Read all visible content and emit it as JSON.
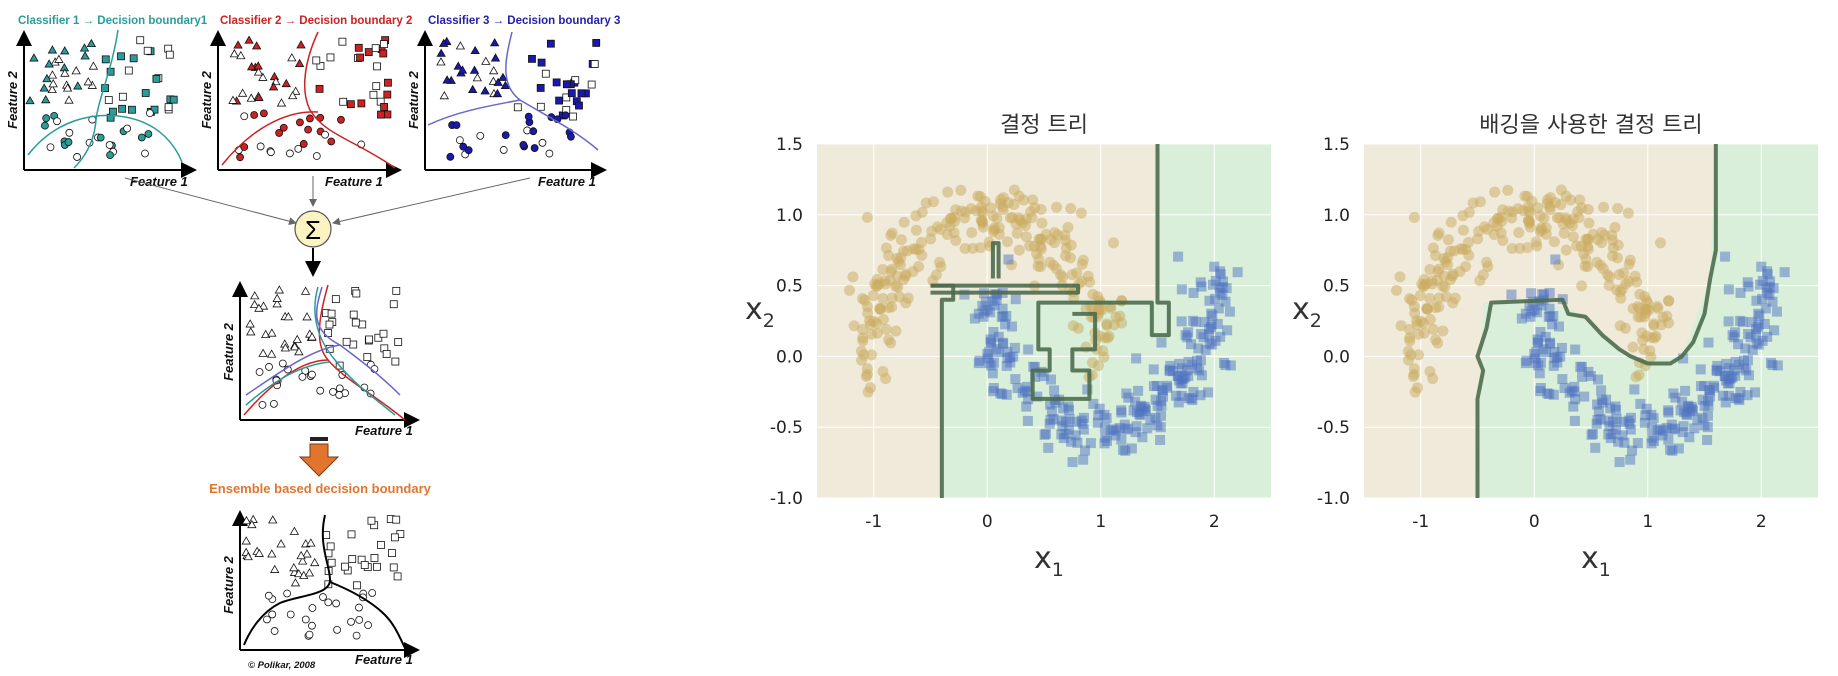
{
  "diagram": {
    "classifier_titles": [
      "Classifier 1 → Decision boundary1",
      "Classifier 2 → Decision boundary 2",
      "Classifier 3 → Decision boundary 3"
    ],
    "classifier_colors": [
      "#2a9d9a",
      "#cc2222",
      "#2222aa"
    ],
    "feature_x": "Feature 1",
    "feature_y": "Feature 2",
    "sum_symbol": "Σ",
    "ensemble_label": "Ensemble based decision boundary",
    "ensemble_color": "#e2752d",
    "credit": "© Polikar, 2008"
  },
  "chart_data": [
    {
      "type": "scatter",
      "title": "결정 트리",
      "xlabel": "x1",
      "ylabel": "x2",
      "xlim": [
        -1.5,
        2.5
      ],
      "ylim": [
        -1.0,
        1.5
      ],
      "xticks": [
        "-1",
        "0",
        "1",
        "2"
      ],
      "yticks": [
        "-1.0",
        "-0.5",
        "0.0",
        "0.5",
        "1.0",
        "1.5"
      ],
      "grid": true,
      "series": [
        {
          "marker": "circle",
          "color": "#c9a95e"
        },
        {
          "marker": "square",
          "color": "#4f74c2"
        }
      ],
      "region_colors": [
        "#efeada",
        "#d9efd9"
      ]
    },
    {
      "type": "scatter",
      "title": "배깅을 사용한 결정 트리",
      "xlabel": "x1",
      "ylabel": "x2",
      "xlim": [
        -1.5,
        2.5
      ],
      "ylim": [
        -1.0,
        1.5
      ],
      "xticks": [
        "-1",
        "0",
        "1",
        "2"
      ],
      "yticks": [
        "-1.0",
        "-0.5",
        "0.0",
        "0.5",
        "1.0",
        "1.5"
      ],
      "grid": true,
      "series": [
        {
          "marker": "circle",
          "color": "#c9a95e"
        },
        {
          "marker": "square",
          "color": "#4f74c2"
        }
      ],
      "region_colors": [
        "#efeada",
        "#d9efd9"
      ]
    }
  ]
}
